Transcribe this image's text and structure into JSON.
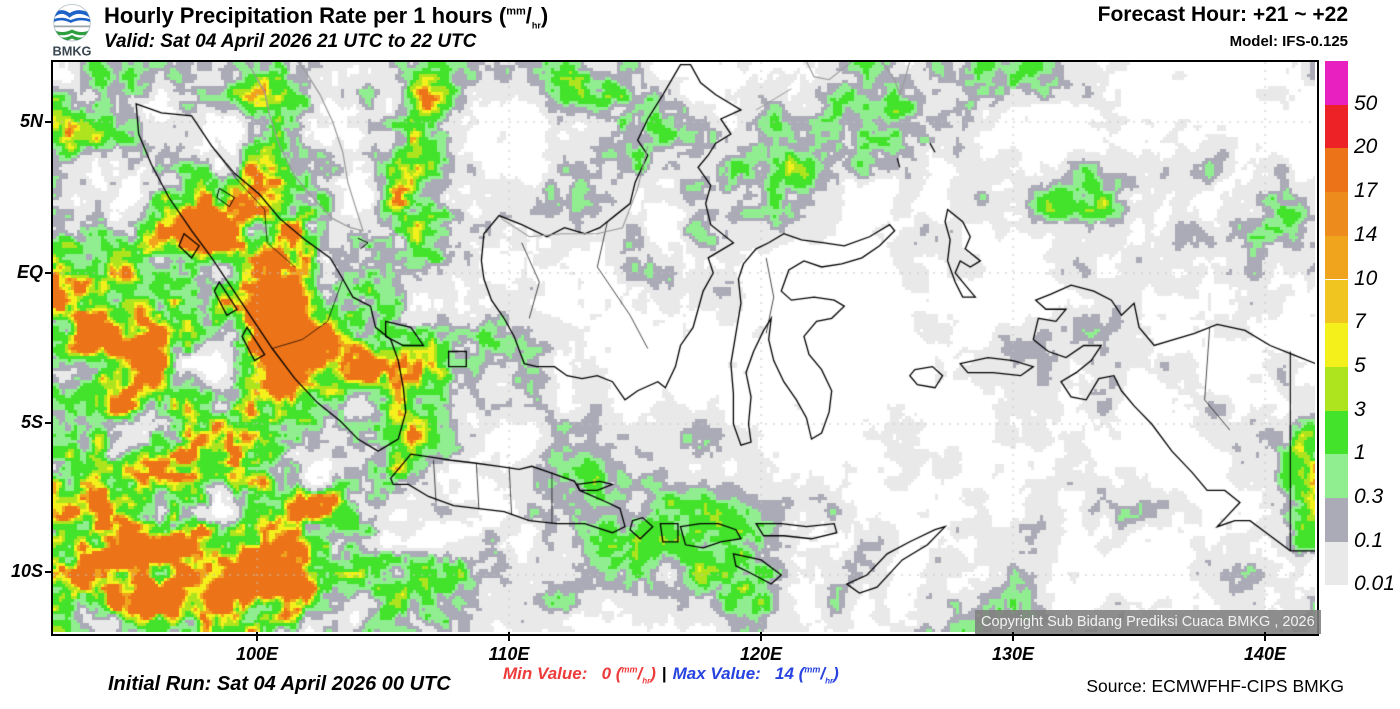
{
  "header": {
    "title": "Hourly Precipitation Rate per 1 hours ",
    "valid": "Valid: Sat 04 April 2026 21 UTC to 22 UTC",
    "forecast_hour": "Forecast Hour: +21 ~ +22",
    "model": "Model: IFS-0.125",
    "logo_text": "BMKG"
  },
  "unit": {
    "open": "(",
    "sup": "mm",
    "slash": "/",
    "sub": "hr",
    "close": ")"
  },
  "axes": {
    "lat_labels": [
      "5N",
      "EQ",
      "5S",
      "10S"
    ],
    "lon_labels": [
      "100E",
      "110E",
      "120E",
      "130E",
      "140E"
    ]
  },
  "legend": {
    "values": [
      "50",
      "20",
      "17",
      "14",
      "10",
      "7",
      "5",
      "3",
      "1",
      "0.3",
      "0.1",
      "0.01"
    ],
    "colors": [
      "#e920c0",
      "#ec2227",
      "#ed7318",
      "#ee8b1d",
      "#f0a41e",
      "#f1c51f",
      "#f3f01c",
      "#aee41e",
      "#43e32b",
      "#90ee90",
      "#aaabb7",
      "#e9e9e9"
    ]
  },
  "map": {
    "copyright": "Copyright Sub Bidang Prediksi Cuaca BMKG , 2026",
    "field_levels": [
      {
        "max": 0.4,
        "color": "#ffffff"
      },
      {
        "max": 0.53,
        "color": "#e9e9e9"
      },
      {
        "max": 0.6,
        "color": "#aaabb7"
      },
      {
        "max": 0.66,
        "color": "#90ee90"
      },
      {
        "max": 0.74,
        "color": "#43e32b"
      },
      {
        "max": 0.78,
        "color": "#aee41e"
      },
      {
        "max": 0.815,
        "color": "#f3f01c"
      },
      {
        "max": 0.84,
        "color": "#f0a41e"
      },
      {
        "max": 9,
        "color": "#ed7318"
      }
    ],
    "coast_color": "#000000",
    "foreign_coast_color": "#9a9a9a",
    "grid_color": "#c4c4c4"
  },
  "footer": {
    "initial_run": "Initial Run: Sat 04 April 2026 00 UTC",
    "min_label": "Min Value:",
    "min_value": "0",
    "separator": "|",
    "max_label": "Max Value:",
    "max_value": "14",
    "source": "Source: ECMWFHF-CIPS BMKG"
  }
}
